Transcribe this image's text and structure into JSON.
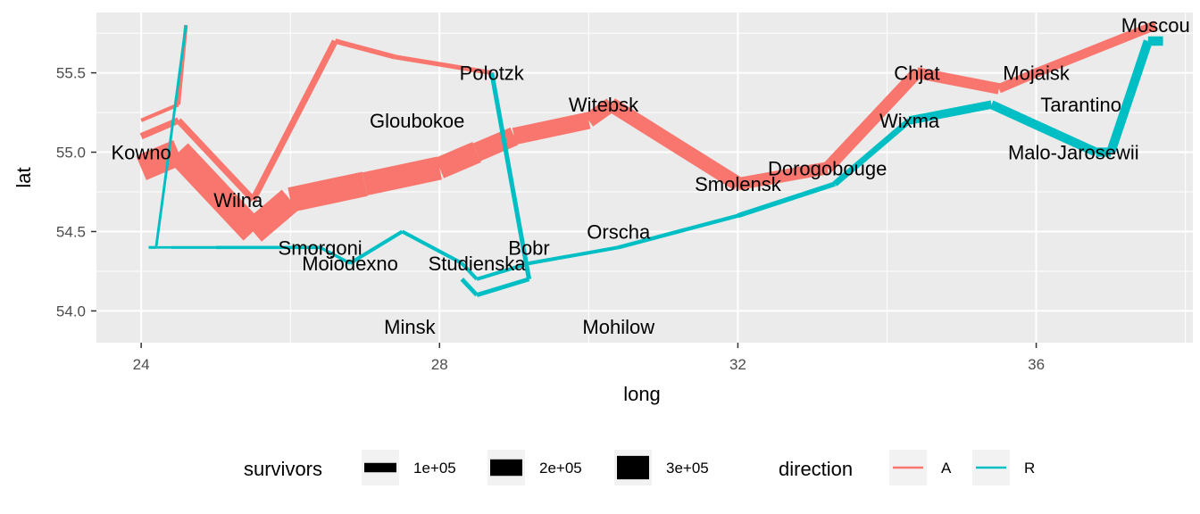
{
  "chart_data": {
    "type": "line",
    "xlabel": "long",
    "ylabel": "lat",
    "xlim": [
      23.4,
      38.1
    ],
    "ylim": [
      53.8,
      55.88
    ],
    "x_ticks": [
      24,
      28,
      32,
      36
    ],
    "x_tick_labels": [
      "24",
      "28",
      "32",
      "36"
    ],
    "y_ticks": [
      54.0,
      54.5,
      55.0,
      55.5
    ],
    "y_tick_labels": [
      "54.0",
      "54.5",
      "55.0",
      "55.5"
    ],
    "grid": true,
    "legend_position": "bottom",
    "size_legend": {
      "title": "survivors",
      "entries": [
        {
          "label": "1e+05",
          "value": 100000
        },
        {
          "label": "2e+05",
          "value": 200000
        },
        {
          "label": "3e+05",
          "value": 300000
        }
      ]
    },
    "color_legend": {
      "title": "direction",
      "entries": [
        {
          "label": "A",
          "color": "#F8766D"
        },
        {
          "label": "R",
          "color": "#00BFC4"
        }
      ]
    },
    "series": [
      {
        "direction": "A",
        "group": 1,
        "color": "#F8766D",
        "points": [
          {
            "long": 24.0,
            "lat": 54.9,
            "survivors": 340000
          },
          {
            "long": 24.5,
            "lat": 55.0,
            "survivors": 340000
          },
          {
            "long": 25.5,
            "lat": 54.5,
            "survivors": 340000
          },
          {
            "long": 26.0,
            "lat": 54.7,
            "survivors": 320000
          },
          {
            "long": 27.0,
            "lat": 54.8,
            "survivors": 300000
          },
          {
            "long": 28.0,
            "lat": 54.9,
            "survivors": 280000
          },
          {
            "long": 28.5,
            "lat": 55.0,
            "survivors": 240000
          },
          {
            "long": 29.0,
            "lat": 55.1,
            "survivors": 210000
          },
          {
            "long": 30.0,
            "lat": 55.2,
            "survivors": 180000
          },
          {
            "long": 30.3,
            "lat": 55.3,
            "survivors": 175000
          },
          {
            "long": 32.0,
            "lat": 54.8,
            "survivors": 145000
          },
          {
            "long": 33.2,
            "lat": 54.9,
            "survivors": 140000
          },
          {
            "long": 34.4,
            "lat": 55.5,
            "survivors": 127100
          },
          {
            "long": 35.5,
            "lat": 55.4,
            "survivors": 100000
          },
          {
            "long": 36.0,
            "lat": 55.5,
            "survivors": 100000
          },
          {
            "long": 37.6,
            "lat": 55.8,
            "survivors": 100000
          }
        ]
      },
      {
        "direction": "R",
        "group": 1,
        "color": "#00BFC4",
        "points": [
          {
            "long": 37.7,
            "lat": 55.7,
            "survivors": 100000
          },
          {
            "long": 37.5,
            "lat": 55.7,
            "survivors": 98000
          },
          {
            "long": 37.0,
            "lat": 55.0,
            "survivors": 97000
          },
          {
            "long": 36.8,
            "lat": 55.0,
            "survivors": 96000
          },
          {
            "long": 35.4,
            "lat": 55.3,
            "survivors": 87000
          },
          {
            "long": 34.3,
            "lat": 55.2,
            "survivors": 55000
          },
          {
            "long": 33.3,
            "lat": 54.8,
            "survivors": 37000
          },
          {
            "long": 32.0,
            "lat": 54.6,
            "survivors": 24000
          },
          {
            "long": 30.4,
            "lat": 54.4,
            "survivors": 20000
          },
          {
            "long": 29.2,
            "lat": 54.3,
            "survivors": 20000
          },
          {
            "long": 28.5,
            "lat": 54.2,
            "survivors": 20000
          },
          {
            "long": 28.3,
            "lat": 54.3,
            "survivors": 20000
          },
          {
            "long": 27.5,
            "lat": 54.5,
            "survivors": 20000
          },
          {
            "long": 26.8,
            "lat": 54.3,
            "survivors": 12000
          },
          {
            "long": 26.4,
            "lat": 54.4,
            "survivors": 14000
          },
          {
            "long": 25.0,
            "lat": 54.4,
            "survivors": 8000
          },
          {
            "long": 24.4,
            "lat": 54.4,
            "survivors": 4000
          },
          {
            "long": 24.2,
            "lat": 54.4,
            "survivors": 4000
          },
          {
            "long": 24.1,
            "lat": 54.4,
            "survivors": 4000
          }
        ]
      },
      {
        "direction": "A",
        "group": 2,
        "color": "#F8766D",
        "points": [
          {
            "long": 24.0,
            "lat": 55.1,
            "survivors": 60000
          },
          {
            "long": 24.5,
            "lat": 55.2,
            "survivors": 60000
          },
          {
            "long": 25.5,
            "lat": 54.7,
            "survivors": 60000
          },
          {
            "long": 26.6,
            "lat": 55.7,
            "survivors": 40000
          },
          {
            "long": 27.4,
            "lat": 55.6,
            "survivors": 33000
          },
          {
            "long": 28.7,
            "lat": 55.5,
            "survivors": 33000
          }
        ]
      },
      {
        "direction": "R",
        "group": 2,
        "color": "#00BFC4",
        "points": [
          {
            "long": 28.7,
            "lat": 55.5,
            "survivors": 33000
          },
          {
            "long": 29.2,
            "lat": 54.2,
            "survivors": 30000
          },
          {
            "long": 28.5,
            "lat": 54.1,
            "survivors": 30000
          },
          {
            "long": 28.3,
            "lat": 54.2,
            "survivors": 28000
          }
        ]
      },
      {
        "direction": "A",
        "group": 3,
        "color": "#F8766D",
        "points": [
          {
            "long": 24.0,
            "lat": 55.2,
            "survivors": 22000
          },
          {
            "long": 24.5,
            "lat": 55.3,
            "survivors": 22000
          },
          {
            "long": 24.6,
            "lat": 55.8,
            "survivors": 6000
          }
        ]
      },
      {
        "direction": "R",
        "group": 3,
        "color": "#00BFC4",
        "points": [
          {
            "long": 24.6,
            "lat": 55.8,
            "survivors": 6000
          },
          {
            "long": 24.2,
            "lat": 54.4,
            "survivors": 6000
          },
          {
            "long": 24.1,
            "lat": 54.4,
            "survivors": 6000
          }
        ]
      }
    ],
    "cities": [
      {
        "name": "Kowno",
        "long": 24.0,
        "lat": 55.0
      },
      {
        "name": "Wilna",
        "long": 25.3,
        "lat": 54.7
      },
      {
        "name": "Smorgoni",
        "long": 26.4,
        "lat": 54.4
      },
      {
        "name": "Moiodexno",
        "long": 26.8,
        "lat": 54.3
      },
      {
        "name": "Gloubokoe",
        "long": 27.7,
        "lat": 55.2
      },
      {
        "name": "Minsk",
        "long": 27.6,
        "lat": 53.9
      },
      {
        "name": "Studienska",
        "long": 28.5,
        "lat": 54.3
      },
      {
        "name": "Polotzk",
        "long": 28.7,
        "lat": 55.5
      },
      {
        "name": "Bobr",
        "long": 29.2,
        "lat": 54.4
      },
      {
        "name": "Witebsk",
        "long": 30.2,
        "lat": 55.3
      },
      {
        "name": "Orscha",
        "long": 30.4,
        "lat": 54.5
      },
      {
        "name": "Mohilow",
        "long": 30.4,
        "lat": 53.9
      },
      {
        "name": "Smolensk",
        "long": 32.0,
        "lat": 54.8
      },
      {
        "name": "Dorogobouge",
        "long": 33.2,
        "lat": 54.9
      },
      {
        "name": "Wixma",
        "long": 34.3,
        "lat": 55.2
      },
      {
        "name": "Chjat",
        "long": 34.4,
        "lat": 55.5
      },
      {
        "name": "Mojaisk",
        "long": 36.0,
        "lat": 55.5
      },
      {
        "name": "Moscou",
        "long": 37.6,
        "lat": 55.8
      },
      {
        "name": "Tarantino",
        "long": 36.6,
        "lat": 55.3
      },
      {
        "name": "Malo-Jarosewii",
        "long": 36.5,
        "lat": 55.0
      }
    ]
  }
}
